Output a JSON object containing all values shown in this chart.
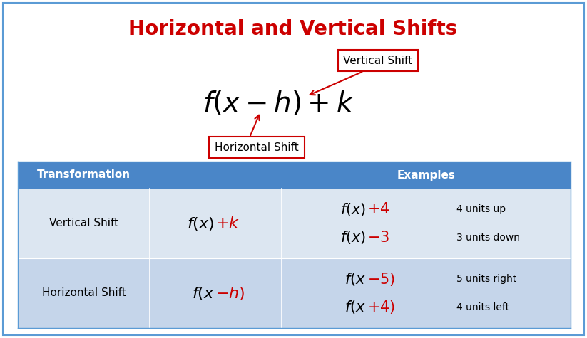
{
  "title": "Horizontal and Vertical Shifts",
  "title_color": "#cc0000",
  "title_fontsize": 20,
  "bg_color": "#ffffff",
  "border_color": "#5b9bd5",
  "table_header_bg": "#4a86c8",
  "table_header_text": "#ffffff",
  "table_row1_bg": "#dce6f1",
  "table_row2_bg": "#c5d5ea",
  "table_col_headers": [
    "Transformation",
    "",
    "Examples"
  ],
  "table_rows": [
    {
      "name": "Vertical Shift",
      "ex1_desc": "4 units up",
      "ex2_desc": "3 units down"
    },
    {
      "name": "Horizontal Shift",
      "ex1_desc": "5 units right",
      "ex2_desc": "4 units left"
    }
  ],
  "arrow_color": "#cc0000",
  "box_border_color": "#cc0000",
  "formula_fontsize": 28,
  "table_formula_fontsize": 16,
  "table_example_fontsize": 15,
  "table_desc_fontsize": 10,
  "vertical_shift_label": "Vertical Shift",
  "horizontal_shift_label": "Horizontal Shift"
}
